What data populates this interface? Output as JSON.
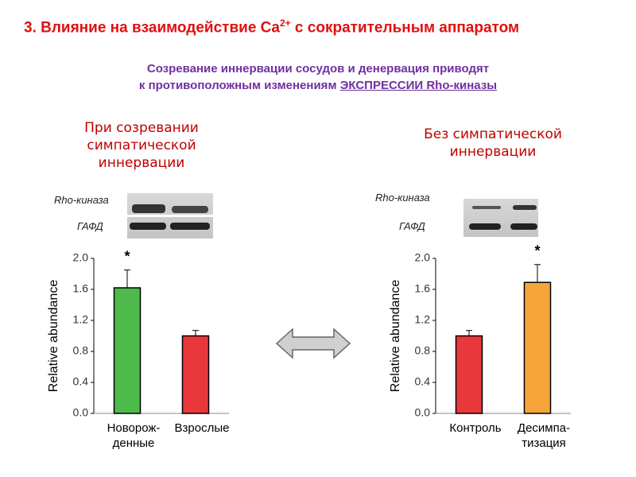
{
  "title": {
    "text": "3. Влияние на взаимодействие Ca",
    "superscript": "2+",
    "rest": " с сократительным аппаратом"
  },
  "subtitle": {
    "line1": "Созревание иннервации сосудов и денервация приводят",
    "line2": "к противоположным изменениям ",
    "underlined": "ЭКСПРЕССИИ Rho-киназы"
  },
  "chart_data": [
    {
      "type": "bar",
      "title": "При созревании\nсимпатической\nиннервации",
      "blot_labels": [
        "Rho-киназа",
        "ГАФД"
      ],
      "ylabel": "Relative abundance",
      "categories": [
        "Новорож-\nденные",
        "Взрослые"
      ],
      "values": [
        1.62,
        1.0
      ],
      "errors": [
        0.23,
        0.07
      ],
      "colors": [
        "#4cbb4c",
        "#e8383c"
      ],
      "annotations": [
        {
          "text": "*",
          "category": 0
        }
      ],
      "ylim": [
        0,
        2
      ],
      "yticks": [
        {
          "value": 0,
          "label": "0.0"
        },
        0.4,
        0.8,
        1.2,
        1.6,
        {
          "value": 2,
          "label": "2.0"
        }
      ]
    },
    {
      "type": "bar",
      "title": "Без симпатической\nиннервации",
      "blot_labels": [
        "Rho-киназа",
        "ГАФД"
      ],
      "ylabel": "Relative abundance",
      "categories": [
        "Контроль",
        "Десимпа-\nтизация"
      ],
      "values": [
        1.0,
        1.69
      ],
      "errors": [
        0.07,
        0.23
      ],
      "colors": [
        "#e8383c",
        "#f5a53a"
      ],
      "annotations": [
        {
          "text": "*",
          "category": 1
        }
      ],
      "ylim": [
        0,
        2
      ],
      "yticks": [
        {
          "value": 0,
          "label": "0.0"
        },
        0.4,
        0.8,
        1.2,
        1.6,
        {
          "value": 2,
          "label": "2.0"
        }
      ]
    }
  ]
}
